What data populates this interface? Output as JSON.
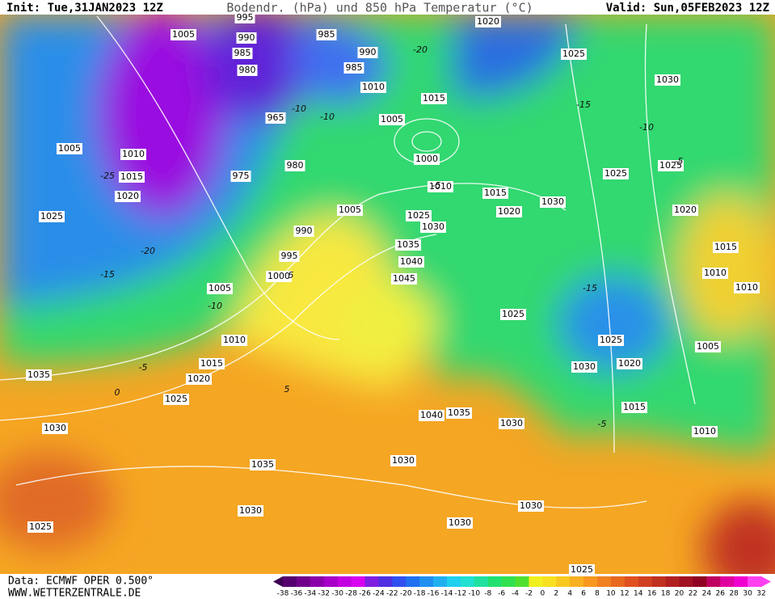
{
  "header": {
    "init": "Init: Tue,31JAN2023 12Z",
    "title": "Bodendr. (hPa) und 850 hPa Temperatur (°C)",
    "valid": "Valid: Sun,05FEB2023 12Z"
  },
  "footer": {
    "data": "Data: ECMWF OPER 0.500°",
    "site": "WWW.WETTERZENTRALE.DE"
  },
  "isobar_labels": [
    1005,
    995,
    990,
    985,
    980,
    985,
    990,
    985,
    1010,
    1015,
    1020,
    1025,
    1030,
    1005,
    965,
    1000,
    1005,
    1010,
    1015,
    1020,
    1025,
    975,
    980,
    1010,
    1015,
    1030,
    1025,
    1025,
    1020,
    1005,
    1025,
    1030,
    1020,
    990,
    995,
    1035,
    1040,
    1045,
    1000,
    1005,
    1015,
    1010,
    1010,
    1025,
    1010,
    1025,
    1005,
    1015,
    1030,
    1020,
    1020,
    1035,
    1025,
    1015,
    1040,
    1035,
    1030,
    1010,
    1030,
    1030,
    1035,
    1030,
    1030,
    1030,
    1025,
    1025
  ],
  "temperature_labels": [
    -25,
    -20,
    -15,
    -10,
    -5,
    0,
    5,
    -10,
    -15,
    -20,
    -5,
    -15,
    -10,
    -5,
    5,
    -10,
    -5
  ],
  "colorbar": {
    "levels": [
      -38,
      -36,
      -34,
      -32,
      -30,
      -28,
      -26,
      -24,
      -22,
      -20,
      -18,
      -16,
      -14,
      -12,
      -10,
      -8,
      -6,
      -4,
      -2,
      0,
      2,
      4,
      6,
      8,
      10,
      12,
      14,
      16,
      18,
      20,
      22,
      24,
      26,
      28,
      30,
      32
    ],
    "colors": [
      "#3c0050",
      "#55006e",
      "#70008c",
      "#8c00aa",
      "#a800c8",
      "#c400e0",
      "#d800f0",
      "#8020e0",
      "#5030e0",
      "#3050f0",
      "#2070f0",
      "#2090f0",
      "#20b0f0",
      "#20d0f0",
      "#20e0d0",
      "#20e0a0",
      "#20e070",
      "#30e050",
      "#50e030",
      "#f0f020",
      "#f8e020",
      "#f8c820",
      "#f8b020",
      "#f89820",
      "#f08020",
      "#e86820",
      "#e05020",
      "#d04020",
      "#c03020",
      "#b02020",
      "#a01020",
      "#900020",
      "#c00060",
      "#e000a0",
      "#f000d0",
      "#ff40f0"
    ]
  }
}
